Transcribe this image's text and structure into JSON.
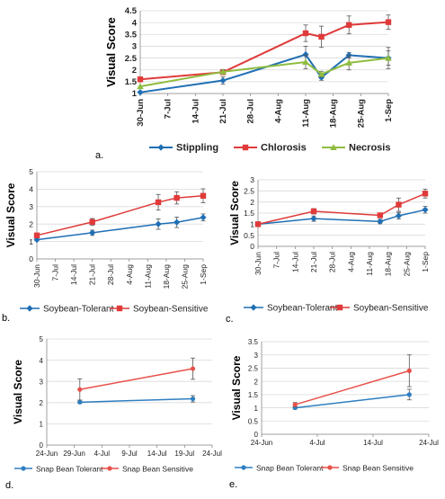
{
  "chart_data": [
    {
      "panel": "a.",
      "type": "line",
      "xlabel": "",
      "ylabel": "Visual Score",
      "ylim": [
        1,
        4.5
      ],
      "yticks": [
        "1",
        "1.5",
        "2",
        "2.5",
        "3",
        "3.5",
        "4",
        "4.5"
      ],
      "xticks": [
        "30-Jun",
        "7-Jul",
        "14-Jul",
        "21-Jul",
        "28-Jul",
        "4-Aug",
        "11-Aug",
        "18-Aug",
        "25-Aug",
        "1-Sep"
      ],
      "xtick_days": [
        0,
        7,
        14,
        21,
        28,
        35,
        42,
        49,
        56,
        63
      ],
      "grid": true,
      "legend": "bottom",
      "series": [
        {
          "name": "Stippling",
          "color": "#1f6fb4",
          "marker": "diamond",
          "x": [
            0,
            21,
            42,
            46,
            53,
            63
          ],
          "y": [
            1.05,
            1.55,
            2.65,
            1.68,
            2.62,
            2.5
          ],
          "err": [
            0,
            0.15,
            0.35,
            0.12,
            0.12,
            0.45
          ]
        },
        {
          "name": "Chlorosis",
          "color": "#e03a3a",
          "marker": "square",
          "x": [
            0,
            21,
            42,
            46,
            53,
            63
          ],
          "y": [
            1.6,
            1.9,
            3.55,
            3.4,
            3.9,
            4.02
          ],
          "err": [
            0,
            0.1,
            0.35,
            0.45,
            0.38,
            0.3
          ]
        },
        {
          "name": "Necrosis",
          "color": "#8fbc3f",
          "marker": "triangle",
          "x": [
            0,
            21,
            42,
            46,
            53,
            63
          ],
          "y": [
            1.3,
            1.92,
            2.33,
            1.82,
            2.3,
            2.5
          ],
          "err": [
            0,
            0.08,
            0.28,
            0.12,
            0.3,
            0.3
          ]
        }
      ]
    },
    {
      "panel": "b.",
      "type": "line",
      "xlabel": "",
      "ylabel": "Visual Score",
      "ylim": [
        0,
        5
      ],
      "yticks": [
        "0",
        "1",
        "2",
        "3",
        "4",
        "5"
      ],
      "xticks": [
        "30-Jun",
        "7-Jul",
        "14-Jul",
        "21-Jul",
        "28-Jul",
        "4-Aug",
        "11-Aug",
        "18-Aug",
        "25-Aug",
        "1-Sep"
      ],
      "xtick_days": [
        0,
        7,
        14,
        21,
        28,
        35,
        42,
        49,
        56,
        63
      ],
      "grid": true,
      "legend": "bottom",
      "series": [
        {
          "name": "Soybean-Tolerant",
          "color": "#1f6fb4",
          "marker": "diamond",
          "x": [
            0,
            21,
            46,
            53,
            63
          ],
          "y": [
            1.1,
            1.5,
            2.0,
            2.1,
            2.38
          ],
          "err": [
            0,
            0.15,
            0.3,
            0.3,
            0.2
          ]
        },
        {
          "name": "Soybean-Sensitive",
          "color": "#e03a3a",
          "marker": "square",
          "x": [
            0,
            21,
            46,
            53,
            63
          ],
          "y": [
            1.35,
            2.12,
            3.25,
            3.5,
            3.62
          ],
          "err": [
            0,
            0.2,
            0.45,
            0.35,
            0.4
          ]
        }
      ]
    },
    {
      "panel": "c.",
      "type": "line",
      "xlabel": "",
      "ylabel": "Visual Score",
      "ylim": [
        0,
        3
      ],
      "yticks": [
        "0",
        "0.5",
        "1",
        "1.5",
        "2",
        "2.5",
        "3"
      ],
      "xticks": [
        "30-Jun",
        "7-Jul",
        "14-Jul",
        "21-Jul",
        "28-Jul",
        "4-Aug",
        "11-Aug",
        "18-Aug",
        "25-Aug",
        "1-Sep"
      ],
      "xtick_days": [
        0,
        7,
        14,
        21,
        28,
        35,
        42,
        49,
        56,
        63
      ],
      "grid": true,
      "legend": "bottom",
      "series": [
        {
          "name": "Soybean-Tolerant",
          "color": "#1f6fb4",
          "marker": "diamond",
          "x": [
            0,
            21,
            46,
            53,
            63
          ],
          "y": [
            1.0,
            1.25,
            1.12,
            1.38,
            1.65
          ],
          "err": [
            0,
            0.12,
            0.1,
            0.15,
            0.15
          ]
        },
        {
          "name": "Soybean-Sensitive",
          "color": "#e03a3a",
          "marker": "square",
          "x": [
            0,
            21,
            46,
            53,
            63
          ],
          "y": [
            1.0,
            1.58,
            1.4,
            1.88,
            2.38
          ],
          "err": [
            0,
            0.12,
            0.1,
            0.3,
            0.2
          ]
        }
      ]
    },
    {
      "panel": "d.",
      "type": "line",
      "xlabel": "",
      "ylabel": "Visual Score",
      "ylim": [
        0,
        5
      ],
      "yticks": [
        "0",
        "1",
        "2",
        "3",
        "4",
        "5"
      ],
      "xticks": [
        "24-Jun",
        "29-Jun",
        "4-Jul",
        "9-Jul",
        "14-Jul",
        "19-Jul",
        "24-Jul"
      ],
      "xtick_days": [
        0,
        5,
        10,
        15,
        20,
        25,
        30
      ],
      "grid": true,
      "legend": "bottom",
      "series": [
        {
          "name": "Snap Bean Tolerant",
          "color": "#2e7ec1",
          "marker": "circle",
          "x": [
            6,
            26.5
          ],
          "y": [
            2.02,
            2.18
          ],
          "err": [
            0.05,
            0.15
          ]
        },
        {
          "name": "Snap Bean Sensitive",
          "color": "#e8504a",
          "marker": "circle",
          "x": [
            6,
            26.5
          ],
          "y": [
            2.62,
            3.6
          ],
          "err": [
            0.5,
            0.5
          ]
        }
      ]
    },
    {
      "panel": "e.",
      "type": "line",
      "xlabel": "",
      "ylabel": "Visual Score",
      "ylim": [
        0,
        3.5
      ],
      "yticks": [
        "0",
        "0.5",
        "1",
        "1.5",
        "2",
        "2.5",
        "3",
        "3.5"
      ],
      "xticks": [
        "24-Jun",
        "4-Jul",
        "14-Jul",
        "24-Jul"
      ],
      "xtick_days": [
        0,
        10,
        20,
        30
      ],
      "grid": true,
      "legend": "bottom",
      "series": [
        {
          "name": "Snap Bean Tolerant",
          "color": "#2e7ec1",
          "marker": "circle",
          "x": [
            6,
            26.5
          ],
          "y": [
            1.0,
            1.5
          ],
          "err": [
            0.05,
            0.2
          ]
        },
        {
          "name": "Snap Bean Sensitive",
          "color": "#e8504a",
          "marker": "circle",
          "x": [
            6,
            26.5
          ],
          "y": [
            1.12,
            2.4
          ],
          "err": [
            0.08,
            0.6
          ]
        }
      ]
    }
  ]
}
